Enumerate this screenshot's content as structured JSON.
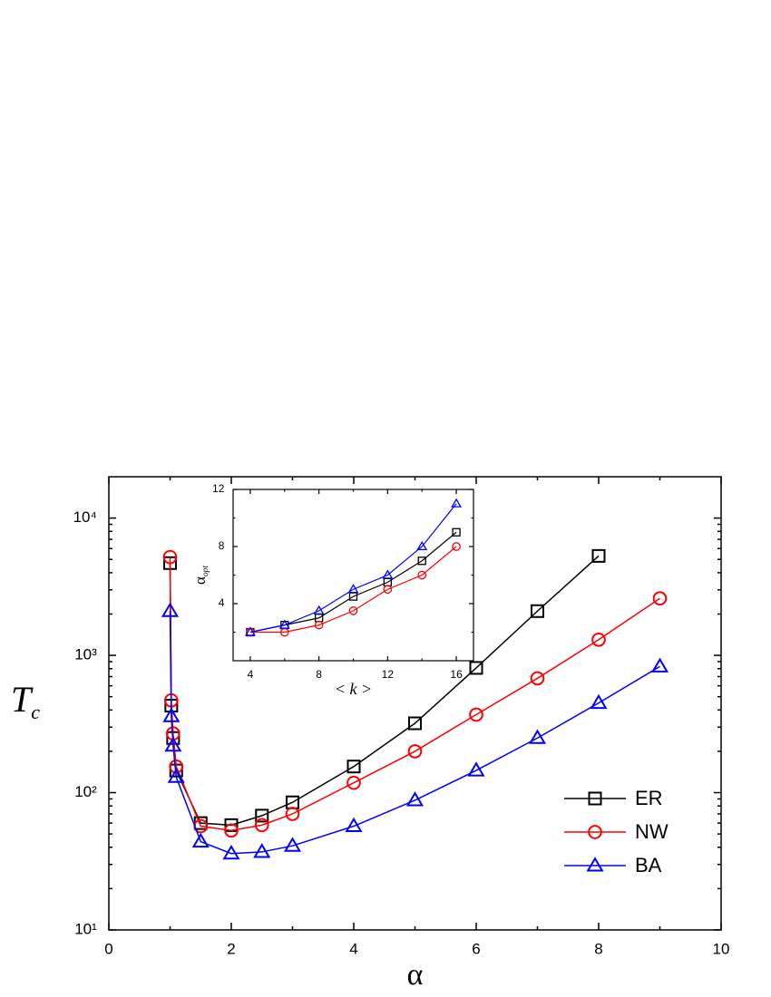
{
  "chart_data": [
    {
      "type": "line",
      "xlabel": "α",
      "ylabel": "T",
      "ylabel_sub": "c",
      "log_y": true,
      "xlim": [
        0,
        10
      ],
      "xticks": [
        0,
        2,
        4,
        6,
        8,
        10
      ],
      "ylim": [
        10,
        20000
      ],
      "yticks": [
        {
          "value": 10,
          "label": "10¹"
        },
        {
          "value": 100,
          "label": "10²"
        },
        {
          "value": 1000,
          "label": "10³"
        },
        {
          "value": 10000,
          "label": "10⁴"
        }
      ],
      "legend": "lower right",
      "series": [
        {
          "name": "ER",
          "color": "#000000",
          "marker": "square",
          "x": [
            1.0,
            1.02,
            1.05,
            1.1,
            1.5,
            2,
            2.5,
            3,
            4,
            5,
            6,
            7,
            8
          ],
          "values": [
            4700,
            430,
            250,
            145,
            60,
            58,
            68,
            85,
            155,
            320,
            810,
            2100,
            5300
          ]
        },
        {
          "name": "NW",
          "color": "#ff0000",
          "marker": "circle",
          "x": [
            1.0,
            1.02,
            1.05,
            1.1,
            1.5,
            2,
            2.5,
            3,
            4,
            5,
            6,
            7,
            8,
            9
          ],
          "values": [
            5200,
            470,
            270,
            155,
            57,
            53,
            58,
            70,
            118,
            200,
            370,
            680,
            1300,
            2600
          ]
        },
        {
          "name": "BA",
          "color": "#0000ff",
          "marker": "triangle",
          "x": [
            1.0,
            1.02,
            1.05,
            1.1,
            1.5,
            2,
            2.5,
            3,
            4,
            5,
            6,
            7,
            8,
            9
          ],
          "values": [
            2100,
            360,
            220,
            130,
            44,
            36,
            37,
            41,
            57,
            88,
            145,
            250,
            450,
            830
          ]
        }
      ]
    },
    {
      "type": "line",
      "xlabel": "< k >",
      "ylabel": "α",
      "ylabel_sub": "opt",
      "xlim": [
        3,
        17
      ],
      "xticks": [
        4,
        8,
        12,
        16
      ],
      "ylim": [
        0,
        12
      ],
      "yticks": [
        4,
        8,
        12
      ],
      "series": [
        {
          "color": "#000000",
          "marker": "square",
          "x": [
            4,
            6,
            8,
            10,
            12,
            14,
            16
          ],
          "values": [
            2,
            2.5,
            3,
            4.5,
            5.5,
            7,
            9
          ]
        },
        {
          "color": "#ff0000",
          "marker": "circle",
          "x": [
            4,
            6,
            8,
            10,
            12,
            14,
            16
          ],
          "values": [
            2,
            2,
            2.5,
            3.5,
            5,
            6,
            8
          ]
        },
        {
          "color": "#0000ff",
          "marker": "triangle",
          "x": [
            4,
            6,
            8,
            10,
            12,
            14,
            16
          ],
          "values": [
            2,
            2.5,
            3.5,
            5,
            6,
            8,
            11
          ]
        }
      ]
    }
  ]
}
